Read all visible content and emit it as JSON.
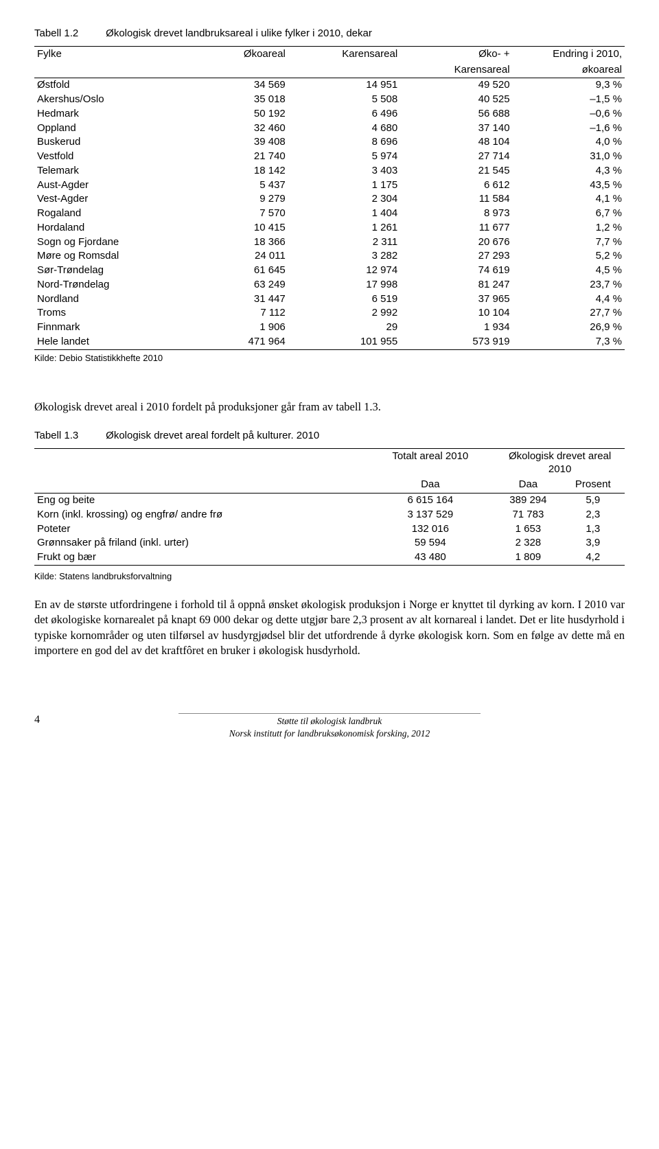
{
  "table1": {
    "number": "Tabell 1.2",
    "caption": "Økologisk drevet landbruksareal i ulike fylker i 2010, dekar",
    "headers": {
      "c0": "Fylke",
      "c1": "Økoareal",
      "c2": "Karensareal",
      "c3a": "Øko- +",
      "c3b": "Karensareal",
      "c4a": "Endring i 2010,",
      "c4b": "økoareal"
    },
    "rows": [
      {
        "c0": "Østfold",
        "c1": "34 569",
        "c2": "14 951",
        "c3": "49 520",
        "c4": "9,3 %"
      },
      {
        "c0": "Akershus/Oslo",
        "c1": "35 018",
        "c2": "5 508",
        "c3": "40 525",
        "c4": "–1,5 %"
      },
      {
        "c0": "Hedmark",
        "c1": "50 192",
        "c2": "6 496",
        "c3": "56 688",
        "c4": "–0,6 %"
      },
      {
        "c0": "Oppland",
        "c1": "32 460",
        "c2": "4 680",
        "c3": "37 140",
        "c4": "–1,6 %"
      },
      {
        "c0": "Buskerud",
        "c1": "39 408",
        "c2": "8 696",
        "c3": "48 104",
        "c4": "4,0 %"
      },
      {
        "c0": "Vestfold",
        "c1": "21 740",
        "c2": "5 974",
        "c3": "27 714",
        "c4": "31,0 %"
      },
      {
        "c0": "Telemark",
        "c1": "18 142",
        "c2": "3 403",
        "c3": "21 545",
        "c4": "4,3 %"
      },
      {
        "c0": "Aust-Agder",
        "c1": "5 437",
        "c2": "1 175",
        "c3": "6 612",
        "c4": "43,5 %"
      },
      {
        "c0": "Vest-Agder",
        "c1": "9 279",
        "c2": "2 304",
        "c3": "11 584",
        "c4": "4,1 %"
      },
      {
        "c0": "Rogaland",
        "c1": "7 570",
        "c2": "1 404",
        "c3": "8 973",
        "c4": "6,7 %"
      },
      {
        "c0": "Hordaland",
        "c1": "10 415",
        "c2": "1 261",
        "c3": "11 677",
        "c4": "1,2 %"
      },
      {
        "c0": "Sogn og Fjordane",
        "c1": "18 366",
        "c2": "2 311",
        "c3": "20 676",
        "c4": "7,7 %"
      },
      {
        "c0": "Møre og Romsdal",
        "c1": "24 011",
        "c2": "3 282",
        "c3": "27 293",
        "c4": "5,2 %"
      },
      {
        "c0": "Sør-Trøndelag",
        "c1": "61 645",
        "c2": "12 974",
        "c3": "74 619",
        "c4": "4,5 %"
      },
      {
        "c0": "Nord-Trøndelag",
        "c1": "63 249",
        "c2": "17 998",
        "c3": "81 247",
        "c4": "23,7 %"
      },
      {
        "c0": "Nordland",
        "c1": "31 447",
        "c2": "6 519",
        "c3": "37 965",
        "c4": "4,4 %"
      },
      {
        "c0": "Troms",
        "c1": "7 112",
        "c2": "2 992",
        "c3": "10 104",
        "c4": "27,7 %"
      },
      {
        "c0": "Finnmark",
        "c1": "1 906",
        "c2": "29",
        "c3": "1 934",
        "c4": "26,9 %"
      }
    ],
    "total": {
      "c0": "Hele landet",
      "c1": "471 964",
      "c2": "101 955",
      "c3": "573 919",
      "c4": "7,3 %"
    },
    "source": "Kilde: Debio Statistikkhefte 2010"
  },
  "para1": "Økologisk drevet areal i 2010 fordelt på produksjoner går fram av tabell 1.3.",
  "table2": {
    "number": "Tabell 1.3",
    "caption": "Økologisk drevet areal fordelt på kulturer. 2010",
    "headers": {
      "g1": "Totalt areal 2010",
      "g2": "Økologisk drevet areal 2010",
      "s1": "Daa",
      "s2": "Daa",
      "s3": "Prosent"
    },
    "rows": [
      {
        "c0": "Eng og beite",
        "c1": "6 615 164",
        "c2": "389 294",
        "c3": "5,9"
      },
      {
        "c0": "Korn (inkl. krossing) og engfrø/ andre frø",
        "c1": "3 137 529",
        "c2": "71 783",
        "c3": "2,3"
      },
      {
        "c0": "Poteter",
        "c1": "132 016",
        "c2": "1 653",
        "c3": "1,3"
      },
      {
        "c0": "Grønnsaker på friland (inkl. urter)",
        "c1": "59 594",
        "c2": "2 328",
        "c3": "3,9"
      },
      {
        "c0": "Frukt og bær",
        "c1": "43 480",
        "c2": "1 809",
        "c3": "4,2"
      }
    ],
    "source": "Kilde: Statens landbruksforvaltning"
  },
  "para2": "En av de største utfordringene i forhold til å oppnå ønsket økologisk produksjon i Norge er knyttet til dyrking av korn. I 2010 var det økologiske kornarealet på knapt 69 000 dekar og dette utgjør bare 2,3 prosent av alt kornareal i landet. Det er lite husdyrhold i typiske kornområder og uten tilførsel av husdyrgjødsel blir det utfordrende å dyrke økologisk korn. Som en følge av dette må en importere en god del av det kraftfôret en bruker i økologisk husdyrhold.",
  "footer": {
    "page": "4",
    "line1": "Støtte til økologisk landbruk",
    "line2": "Norsk institutt for landbruksøkonomisk forsking, 2012"
  }
}
